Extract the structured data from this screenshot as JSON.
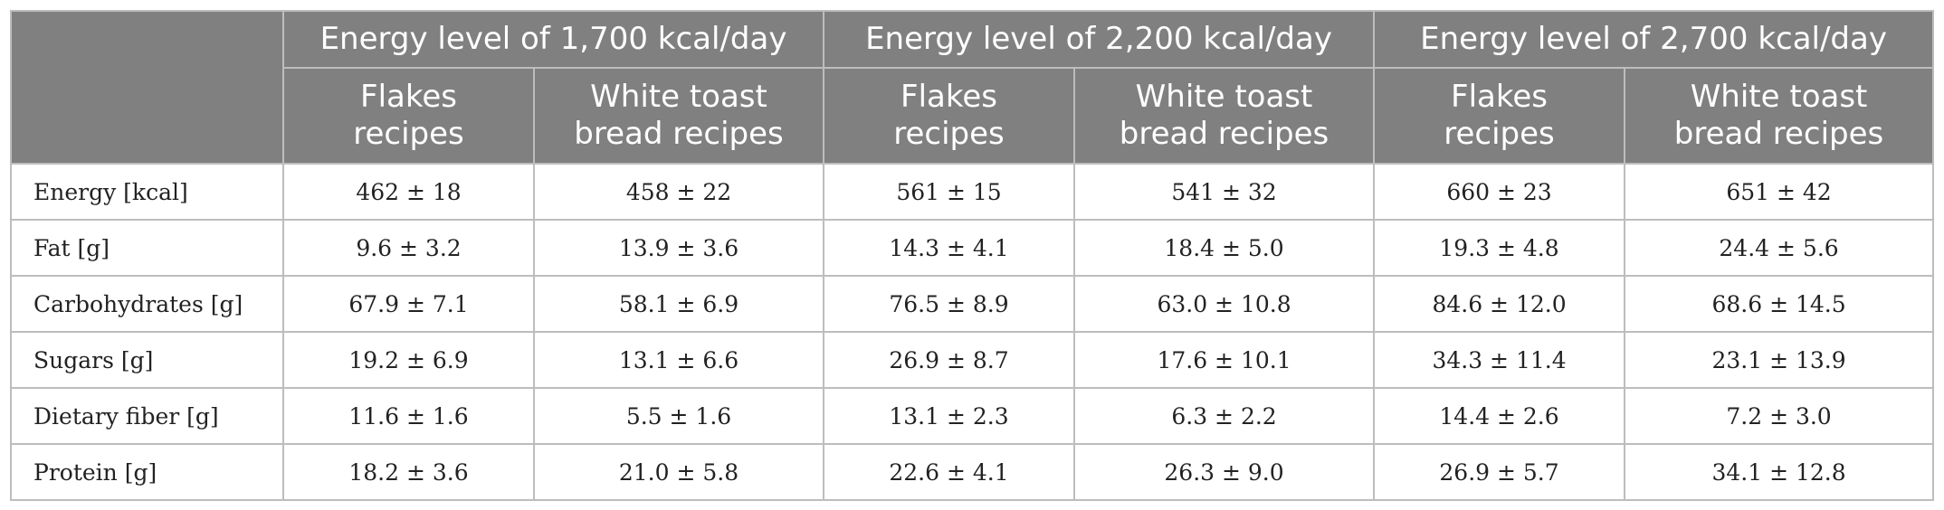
{
  "header": {
    "groups": [
      "Energy level of 1,700 kcal/day",
      "Energy level of 2,200 kcal/day",
      "Energy level of 2,700 kcal/day"
    ],
    "subheaders": [
      [
        "Flakes",
        "recipes"
      ],
      [
        "White toast",
        "bread recipes"
      ],
      [
        "Flakes",
        "recipes"
      ],
      [
        "White toast",
        "bread recipes"
      ],
      [
        "Flakes",
        "recipes"
      ],
      [
        "White toast",
        "bread recipes"
      ]
    ]
  },
  "rows": [
    {
      "label": "Energy [kcal]",
      "values": [
        "462 ± 18",
        "458 ± 22",
        "561 ± 15",
        "541 ± 32",
        "660 ± 23",
        "651 ± 42"
      ]
    },
    {
      "label": "Fat [g]",
      "values": [
        "9.6 ± 3.2",
        "13.9 ± 3.6",
        "14.3 ± 4.1",
        "18.4 ± 5.0",
        "19.3 ± 4.8",
        "24.4 ± 5.6"
      ]
    },
    {
      "label": "Carbohydrates [g]",
      "values": [
        "67.9 ± 7.1",
        "58.1 ± 6.9",
        "76.5 ± 8.9",
        "63.0 ± 10.8",
        "84.6 ± 12.0",
        "68.6 ± 14.5"
      ]
    },
    {
      "label": "Sugars [g]",
      "values": [
        "19.2 ± 6.9",
        "13.1 ± 6.6",
        "26.9 ± 8.7",
        "17.6 ± 10.1",
        "34.3 ± 11.4",
        "23.1 ± 13.9"
      ]
    },
    {
      "label": "Dietary fiber [g]",
      "values": [
        "11.6 ± 1.6",
        "5.5 ± 1.6",
        "13.1 ± 2.3",
        "6.3 ± 2.2",
        "14.4 ± 2.6",
        "7.2 ± 3.0"
      ]
    },
    {
      "label": "Protein [g]",
      "values": [
        "18.2 ± 3.6",
        "21.0 ± 5.8",
        "22.6 ± 4.1",
        "26.3 ± 9.0",
        "26.9 ± 5.7",
        "34.1 ± 12.8"
      ]
    }
  ]
}
